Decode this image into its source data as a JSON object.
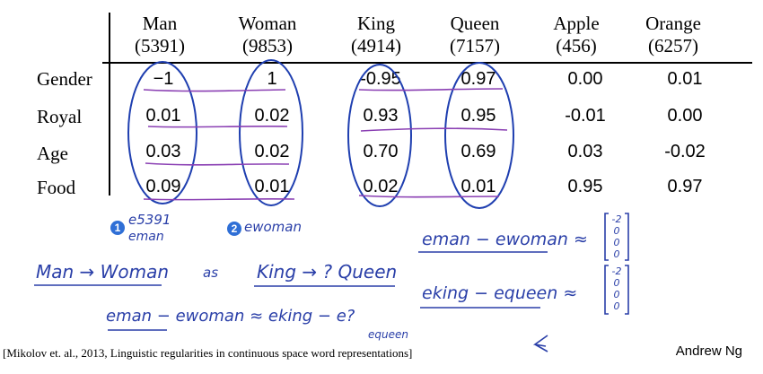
{
  "table": {
    "columns": [
      {
        "name": "Man",
        "index": "(5391)"
      },
      {
        "name": "Woman",
        "index": "(9853)"
      },
      {
        "name": "King",
        "index": "(4914)"
      },
      {
        "name": "Queen",
        "index": "(7157)"
      },
      {
        "name": "Apple",
        "index": "(456)"
      },
      {
        "name": "Orange",
        "index": "(6257)"
      }
    ],
    "rows": [
      {
        "label": "Gender",
        "values": [
          "−1",
          "1",
          "-0.95",
          "0.97",
          "0.00",
          "0.01"
        ]
      },
      {
        "label": "Royal",
        "values": [
          "0.01",
          "0.02",
          "0.93",
          "0.95",
          "-0.01",
          "0.00"
        ]
      },
      {
        "label": "Age",
        "values": [
          "0.03",
          "0.02",
          "0.70",
          "0.69",
          "0.03",
          "-0.02"
        ]
      },
      {
        "label": "Food",
        "values": [
          "0.09",
          "0.01",
          "0.02",
          "0.01",
          "0.95",
          "0.97"
        ]
      }
    ]
  },
  "annotations": {
    "badge1": "1",
    "badge2": "2",
    "e5391": "e5391",
    "eman": "eman",
    "ewoman": "ewoman",
    "diff1": "eman − ewoman ≈",
    "diff2": "eking − equeen ≈",
    "analogy_left": "Man → Woman",
    "analogy_as": "as",
    "analogy_right": "King → ? Queen",
    "equation": "eman − ewoman ≈ eking − e?",
    "equation_sub": "equeen",
    "vector1": [
      "-2",
      "0",
      "0",
      "0"
    ],
    "vector2": [
      "-2",
      "0",
      "0",
      "0"
    ]
  },
  "footer": {
    "citation": "[Mikolov et. al., 2013, Linguistic regularities in continuous space word representations]",
    "author": "Andrew Ng"
  },
  "colors": {
    "ink": "#2a3fa8",
    "circle": "#1f3fb0",
    "underline": "#8a3fb3",
    "badge": "#2f6fd6"
  }
}
